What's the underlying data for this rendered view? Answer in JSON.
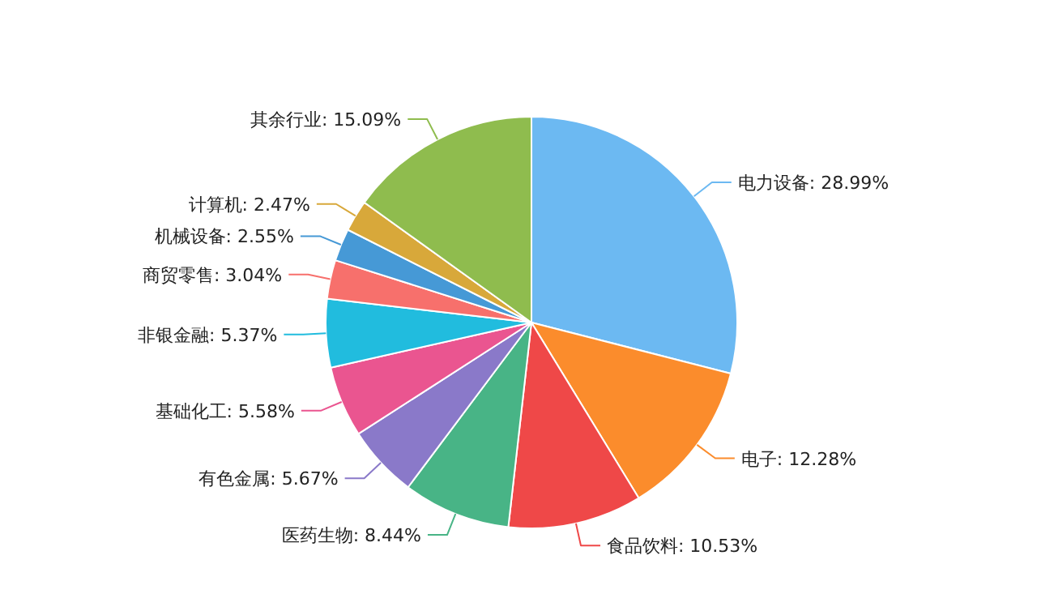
{
  "chart_data": {
    "type": "pie",
    "categories": [
      "电力设备",
      "电子",
      "食品饮料",
      "医药生物",
      "有色金属",
      "基础化工",
      "非银金融",
      "商贸零售",
      "机械设备",
      "计算机",
      "其余行业"
    ],
    "values": [
      28.99,
      12.28,
      10.53,
      8.44,
      5.67,
      5.58,
      5.37,
      3.04,
      2.55,
      2.47,
      15.09
    ],
    "value_labels": [
      "28.99%",
      "12.28%",
      "10.53%",
      "8.44%",
      "5.67%",
      "5.58%",
      "5.37%",
      "3.04%",
      "2.55%",
      "2.47%",
      "15.09%"
    ],
    "colors": [
      "#6cb9f2",
      "#fb8c2c",
      "#ef4848",
      "#48b486",
      "#8a79c9",
      "#ea5590",
      "#21bcde",
      "#f7706c",
      "#4699d6",
      "#d8a83a",
      "#8fbc4e"
    ]
  }
}
